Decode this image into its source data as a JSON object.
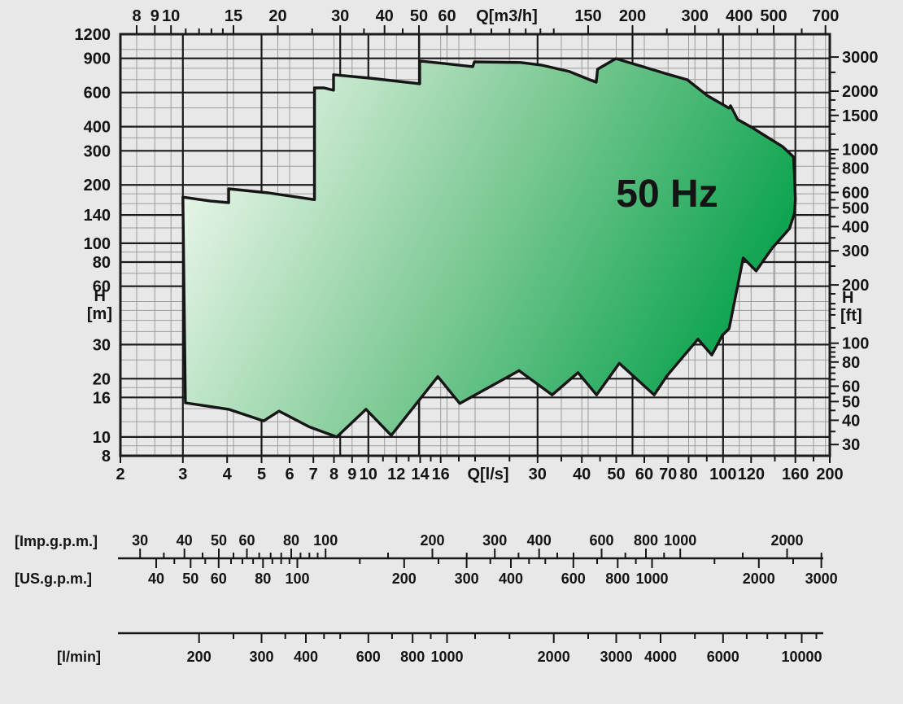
{
  "frequency_label": "50 Hz",
  "chart_data": {
    "type": "area",
    "title": "50 Hz",
    "description": "Pump operating range envelope, head H versus flow Q, log-log grid",
    "x_range": [
      2,
      200
    ],
    "y_range": [
      8,
      1200
    ],
    "grid": true,
    "axes": {
      "top": {
        "label": "Q[m3/h]",
        "unit_to_ls_divisor": 3.6,
        "labeled_ticks": [
          8,
          9,
          10,
          15,
          20,
          30,
          40,
          50,
          60,
          150,
          200,
          300,
          400,
          500,
          700
        ],
        "minor_ticks": [
          11,
          12,
          13,
          14,
          25,
          35,
          45,
          70,
          80,
          90,
          100,
          110,
          120,
          250,
          350,
          450,
          600
        ]
      },
      "bottom": {
        "label": "Q[l/s]",
        "labeled_ticks": [
          2,
          3,
          4,
          5,
          6,
          7,
          8,
          9,
          10,
          12,
          14,
          16,
          30,
          40,
          50,
          60,
          70,
          80,
          100,
          120,
          160,
          200
        ],
        "minor_ticks": [
          11,
          13,
          15,
          18,
          20,
          25,
          35,
          45,
          90,
          140,
          180
        ]
      },
      "left": {
        "label_1": "H",
        "label_2": "[m]",
        "labeled_ticks": [
          8,
          10,
          16,
          20,
          30,
          60,
          80,
          100,
          140,
          200,
          300,
          400,
          600,
          900,
          1200
        ]
      },
      "right": {
        "label_1": "H",
        "label_2": "[ft]",
        "unit_to_m_factor": 0.3048,
        "labeled_ticks": [
          30,
          40,
          50,
          60,
          80,
          100,
          200,
          300,
          400,
          500,
          600,
          800,
          1000,
          1500,
          2000,
          3000
        ],
        "minor_ticks": [
          35,
          45,
          55,
          65,
          70,
          75,
          85,
          90,
          95,
          120,
          140,
          150,
          160,
          180,
          250,
          350,
          450,
          550,
          650,
          700,
          750,
          850,
          900,
          950,
          1200,
          1400,
          1600,
          1800,
          2500
        ]
      }
    },
    "gridlines": {
      "v_major_ls": [
        2,
        3,
        5,
        10,
        30,
        100,
        160,
        200
      ],
      "v_major_m3h": [
        30,
        50,
        200
      ],
      "v_minor_ls": [
        4,
        6,
        7,
        8,
        9,
        12,
        14,
        16,
        18,
        20,
        25,
        35,
        40,
        50,
        60,
        70,
        80,
        90,
        120,
        140,
        180
      ],
      "v_minor_m3h": [
        8,
        9,
        10,
        15,
        20,
        40,
        60,
        150,
        300,
        400,
        500,
        700
      ],
      "h_major_m": [
        8,
        10,
        16,
        20,
        30,
        60,
        80,
        100,
        140,
        200,
        300,
        400,
        600,
        900,
        1200
      ],
      "h_minor_m": [
        9,
        12,
        14,
        18,
        25,
        35,
        40,
        45,
        50,
        70,
        90,
        120,
        160,
        180,
        250,
        350,
        500,
        700,
        800,
        1000
      ]
    },
    "envelope_points_q_h": [
      [
        3.0,
        173
      ],
      [
        3.6,
        165
      ],
      [
        4.04,
        162
      ],
      [
        4.04,
        191
      ],
      [
        5.23,
        182
      ],
      [
        7.05,
        168
      ],
      [
        7.05,
        634
      ],
      [
        7.5,
        634
      ],
      [
        7.98,
        616
      ],
      [
        7.98,
        741
      ],
      [
        10.1,
        712
      ],
      [
        13.96,
        666
      ],
      [
        13.96,
        873
      ],
      [
        16.3,
        848
      ],
      [
        19.7,
        816
      ],
      [
        19.9,
        864
      ],
      [
        26.9,
        857
      ],
      [
        30.7,
        832
      ],
      [
        36.9,
        770
      ],
      [
        42.1,
        698
      ],
      [
        43.9,
        678
      ],
      [
        44.3,
        792
      ],
      [
        49.9,
        898
      ],
      [
        59.4,
        816
      ],
      [
        69.5,
        748
      ],
      [
        79.3,
        698
      ],
      [
        90.6,
        576
      ],
      [
        104,
        498
      ],
      [
        105,
        513
      ],
      [
        110,
        435
      ],
      [
        121,
        395
      ],
      [
        135,
        348
      ],
      [
        147,
        316
      ],
      [
        158,
        279
      ],
      [
        159,
        225
      ],
      [
        160,
        168
      ],
      [
        159,
        143
      ],
      [
        154,
        119
      ],
      [
        138,
        95
      ],
      [
        124,
        72
      ],
      [
        114,
        84
      ],
      [
        104,
        36.2
      ],
      [
        99.6,
        33.5
      ],
      [
        93,
        26.5
      ],
      [
        85,
        32
      ],
      [
        69.5,
        20.7
      ],
      [
        64,
        16.5
      ],
      [
        51,
        24
      ],
      [
        44,
        16.5
      ],
      [
        39,
        21.5
      ],
      [
        33,
        16.5
      ],
      [
        26.6,
        22
      ],
      [
        18.1,
        14.9
      ],
      [
        15.7,
        20.5
      ],
      [
        11.6,
        10.2
      ],
      [
        9.85,
        13.9
      ],
      [
        8.15,
        10
      ],
      [
        6.8,
        11.3
      ],
      [
        5.6,
        13.6
      ],
      [
        5.07,
        12.1
      ],
      [
        4.04,
        13.9
      ],
      [
        3.05,
        15
      ]
    ],
    "scales": [
      {
        "name": "imp-gpm",
        "label": "[Imp.g.p.m.]",
        "to_ls_divisor": 13.198,
        "side": "above",
        "labeled_ticks": [
          30,
          40,
          50,
          60,
          80,
          100,
          200,
          300,
          400,
          600,
          800,
          1000,
          2000
        ],
        "minor_ticks": [
          35,
          45,
          55,
          65,
          70,
          75,
          85,
          90,
          95,
          150,
          250,
          350,
          450,
          500,
          700,
          900,
          1500,
          2500
        ]
      },
      {
        "name": "us-gpm",
        "label": "[US.g.p.m.]",
        "to_ls_divisor": 15.8503,
        "side": "below",
        "labeled_ticks": [
          40,
          50,
          60,
          80,
          100,
          200,
          300,
          400,
          600,
          800,
          1000,
          2000,
          3000
        ],
        "minor_ticks": [
          45,
          55,
          65,
          70,
          75,
          85,
          90,
          95,
          150,
          250,
          350,
          450,
          500,
          700,
          900,
          1500,
          2500
        ]
      },
      {
        "name": "l-min",
        "label": "[l/min]",
        "to_ls_divisor": 60,
        "side": "below",
        "labeled_ticks": [
          200,
          300,
          400,
          600,
          800,
          1000,
          2000,
          3000,
          4000,
          6000,
          10000
        ],
        "minor_ticks": [
          250,
          350,
          450,
          500,
          700,
          900,
          1200,
          1500,
          2500,
          3500,
          5000,
          7000,
          8000,
          9000,
          11000
        ]
      }
    ],
    "colors": {
      "background": "#e8e8e8",
      "grid_minor": "#9c9c9c",
      "grid_major": "#1b1b1b",
      "line": "#161616",
      "envelope_fill_light": "#f3faf1",
      "envelope_fill_mid": "#7fca96",
      "envelope_fill_dark": "#009f48"
    }
  }
}
